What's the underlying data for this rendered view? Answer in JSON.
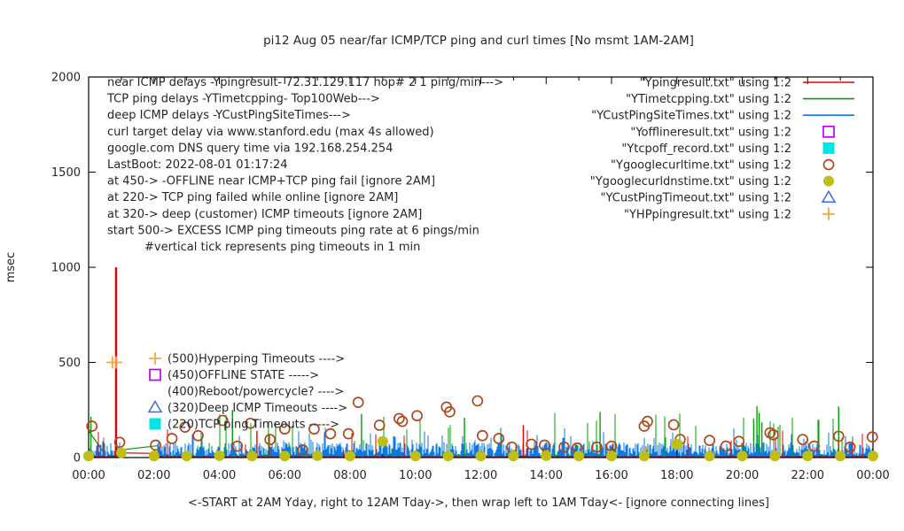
{
  "title": "pi12 Aug 05  near/far ICMP/TCP ping and curl times [No msmt 1AM-2AM]",
  "axes": {
    "ylabel": "msec",
    "xlabel": "<-START at 2AM Yday, right to 12AM Tday->, then wrap left to 1AM Tday<- [ignore connecting lines]",
    "y_ticks": [
      0,
      500,
      1000,
      1500,
      2000
    ],
    "ylim": [
      0,
      2000
    ],
    "x_tick_labels": [
      "00:00",
      "02:00",
      "04:00",
      "06:00",
      "08:00",
      "10:00",
      "12:00",
      "14:00",
      "16:00",
      "18:00",
      "20:00",
      "22:00",
      "00:00"
    ],
    "x_major_every_hours": 2,
    "x_minor_every_hours": 1,
    "x_range_hours": [
      0,
      24
    ]
  },
  "info_lines": [
    "near ICMP delays -Ypingresult- 72.31.129.117 hop# 2 1 ping/min--->",
    "TCP ping delays -YTimetcpping- Top100Web--->",
    "deep ICMP delays -YCustPingSiteTimes--->",
    "curl target delay via www.stanford.edu (max 4s allowed)",
    "google.com DNS query time via 192.168.254.254",
    "LastBoot: 2022-08-01 01:17:24",
    "at 450-> -OFFLINE near ICMP+TCP ping fail [ignore 2AM]",
    "at 220-> TCP ping failed while online [ignore 2AM]",
    "at 320-> deep (customer) ICMP timeouts [ignore 2AM]",
    "start 500-> EXCESS ICMP ping timeouts ping rate at 6 pings/min",
    "#vertical tick represents ping timeouts in 1 min"
  ],
  "legend": [
    {
      "label": "\"Ypingresult.txt\" using 1:2",
      "marker": "line",
      "color": "#e60000"
    },
    {
      "label": "\"YTimetcpping.txt\" using 1:2",
      "marker": "line",
      "color": "#00a000"
    },
    {
      "label": "\"YCustPingSiteTimes.txt\" using 1:2",
      "marker": "line",
      "color": "#0b79e0"
    },
    {
      "label": "\"Yofflineresult.txt\" using 1:2",
      "marker": "open-square",
      "color": "#c000f0"
    },
    {
      "label": "\"Ytcpoff_record.txt\" using 1:2",
      "marker": "filled-square",
      "color": "#00e5e5"
    },
    {
      "label": "\"Ygooglecurltime.txt\" using 1:2",
      "marker": "open-circle",
      "color": "#b1471c"
    },
    {
      "label": "\"Ygooglecurldnstime.txt\" using 1:2",
      "marker": "filled-circle",
      "color": "#bebe14"
    },
    {
      "label": "\"YCustPingTimeout.txt\" using 1:2",
      "marker": "open-triangle",
      "color": "#4169e1"
    },
    {
      "label": "\"YHPpingresult.txt\" using 1:2",
      "marker": "plus",
      "color": "#f5a742"
    }
  ],
  "annotations": [
    {
      "label": "(500)Hyperping Timeouts ---->",
      "marker": "plus",
      "color": "#f5a742"
    },
    {
      "label": "(450)OFFLINE STATE ----->",
      "marker": "open-square",
      "color": "#c000f0"
    },
    {
      "label": "(400)Reboot/powercycle? ---->",
      "marker": "none",
      "color": "#262626"
    },
    {
      "label": "(320)Deep ICMP Timeouts ---->",
      "marker": "open-triangle",
      "color": "#4169e1"
    },
    {
      "label": "(220)TCP ping Timeouts ----->",
      "marker": "filled-square",
      "color": "#00e5e5"
    }
  ],
  "chart_data": {
    "type": "line+scatter",
    "title": "pi12 Aug 05  near/far ICMP/TCP ping and curl times [No msmt 1AM-2AM]",
    "xlabel": "<-START at 2AM Yday, right to 12AM Tday->, then wrap left to 1AM Tday<- [ignore connecting lines]",
    "ylabel": "msec",
    "ylim": [
      0,
      2000
    ],
    "x_hours": [
      0,
      24
    ],
    "no_measurement_gap_hours": [
      1.0,
      2.1
    ],
    "grid": false,
    "legend_position": "top-right-inside",
    "series": [
      {
        "name": "Ypingresult",
        "label": "\"Ypingresult.txt\" using 1:2",
        "style": "impulse-noise",
        "color": "#e60000",
        "noise": {
          "seed": 3,
          "base_min": 2,
          "base_max": 10,
          "spike_prob": 0.025,
          "spike_min": 25,
          "spike_max": 150
        },
        "events": [
          [
            0.84,
            1000
          ],
          [
            5.15,
            140
          ],
          [
            13.3,
            170
          ]
        ],
        "bridge_segments": [
          [
            [
              0.84,
              25
            ],
            [
              2.1,
              22
            ]
          ]
        ]
      },
      {
        "name": "YTimetcpping",
        "label": "\"YTimetcpping.txt\" using 1:2",
        "style": "impulse-noise",
        "color": "#00a000",
        "noise": {
          "seed": 7,
          "base_min": 2,
          "base_max": 20,
          "spike_prob": 0.06,
          "spike_min": 40,
          "spike_max": 240
        },
        "events": [
          [
            0.07,
            215
          ],
          [
            4.4,
            250
          ],
          [
            8.35,
            230
          ],
          [
            11.5,
            210
          ],
          [
            15.65,
            240
          ],
          [
            20.35,
            205
          ],
          [
            20.45,
            270
          ],
          [
            20.52,
            235
          ],
          [
            20.6,
            185
          ],
          [
            22.95,
            268
          ]
        ],
        "bridge_segments": [
          [
            [
              0.0,
              140
            ],
            [
              0.45,
              30
            ]
          ],
          [
            [
              1.0,
              40
            ],
            [
              2.1,
              62
            ]
          ]
        ]
      },
      {
        "name": "YCustPingSiteTimes",
        "label": "\"YCustPingSiteTimes.txt\" using 1:2",
        "style": "impulse-noise",
        "color": "#0b79e0",
        "noise": {
          "seed": 11,
          "base_min": 4,
          "base_max": 80,
          "burst_prob": 0.1,
          "burst_max": 70,
          "rare_prob": 0.015,
          "rare_min": 110,
          "rare_max": 165
        },
        "events": [],
        "bridge_segments": []
      },
      {
        "name": "Yofflineresult",
        "label": "\"Yofflineresult.txt\" using 1:2",
        "style": "open-square",
        "color": "#c000f0",
        "points": []
      },
      {
        "name": "Ytcpoff_record",
        "label": "\"Ytcpoff_record.txt\" using 1:2",
        "style": "filled-square",
        "color": "#00e5e5",
        "points": []
      },
      {
        "name": "Ygooglecurltime",
        "label": "\"Ygooglecurltime.txt\" using 1:2",
        "style": "open-circle",
        "color": "#b1471c",
        "points": [
          [
            0.1,
            165
          ],
          [
            0.95,
            80
          ],
          [
            2.05,
            65
          ],
          [
            2.55,
            100
          ],
          [
            2.95,
            160
          ],
          [
            3.35,
            115
          ],
          [
            4.1,
            195
          ],
          [
            4.55,
            60
          ],
          [
            4.95,
            180
          ],
          [
            5.55,
            95
          ],
          [
            6.0,
            150
          ],
          [
            6.55,
            40
          ],
          [
            6.9,
            150
          ],
          [
            7.4,
            125
          ],
          [
            7.95,
            125
          ],
          [
            8.25,
            290
          ],
          [
            8.9,
            170
          ],
          [
            9.5,
            205
          ],
          [
            9.6,
            190
          ],
          [
            10.05,
            220
          ],
          [
            10.95,
            265
          ],
          [
            11.05,
            240
          ],
          [
            11.9,
            298
          ],
          [
            12.05,
            115
          ],
          [
            12.55,
            100
          ],
          [
            12.95,
            55
          ],
          [
            13.55,
            70
          ],
          [
            13.95,
            65
          ],
          [
            14.55,
            55
          ],
          [
            14.95,
            50
          ],
          [
            15.55,
            55
          ],
          [
            16.0,
            60
          ],
          [
            17.0,
            165
          ],
          [
            17.1,
            190
          ],
          [
            17.9,
            172
          ],
          [
            18.1,
            95
          ],
          [
            19.0,
            90
          ],
          [
            19.5,
            60
          ],
          [
            19.9,
            85
          ],
          [
            20.85,
            130
          ],
          [
            20.95,
            120
          ],
          [
            21.85,
            95
          ],
          [
            22.2,
            60
          ],
          [
            22.95,
            112
          ],
          [
            23.3,
            55
          ],
          [
            23.98,
            108
          ]
        ]
      },
      {
        "name": "Ygooglecurldnstime",
        "label": "\"Ygooglecurldnstime.txt\" using 1:2",
        "style": "filled-circle",
        "color": "#bebe14",
        "points": [
          [
            0,
            8
          ],
          [
            1,
            25
          ],
          [
            2,
            8
          ],
          [
            3,
            8
          ],
          [
            4,
            10
          ],
          [
            5,
            8
          ],
          [
            6,
            8
          ],
          [
            7,
            10
          ],
          [
            8,
            8
          ],
          [
            9,
            85
          ],
          [
            10,
            8
          ],
          [
            11,
            8
          ],
          [
            12,
            8
          ],
          [
            13,
            8
          ],
          [
            14,
            10
          ],
          [
            15,
            8
          ],
          [
            16,
            8
          ],
          [
            17,
            8
          ],
          [
            18,
            70
          ],
          [
            19,
            8
          ],
          [
            20,
            8
          ],
          [
            21,
            8
          ],
          [
            22,
            8
          ],
          [
            23,
            8
          ],
          [
            24,
            8
          ]
        ]
      },
      {
        "name": "YCustPingTimeout",
        "label": "\"YCustPingTimeout.txt\" using 1:2",
        "style": "open-triangle",
        "color": "#4169e1",
        "points": []
      },
      {
        "name": "YHPpingresult",
        "label": "\"YHPpingresult.txt\" using 1:2",
        "style": "plus",
        "color": "#f5a742",
        "points": [
          [
            0.73,
            500
          ],
          [
            0.84,
            500
          ]
        ]
      }
    ]
  }
}
